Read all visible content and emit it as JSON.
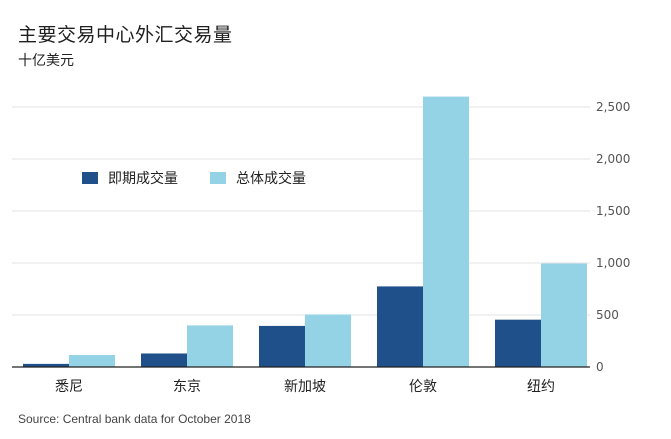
{
  "title": "主要交易中心外汇交易量",
  "subtitle": "十亿美元",
  "source": "Source: Central bank data for October 2018",
  "colors": {
    "spot": "#1f5089",
    "total": "#94d2e5",
    "grid": "#e3e3e3",
    "axis": "#222222",
    "tick_text": "#555555"
  },
  "chart_data": {
    "type": "bar",
    "categories": [
      "悉尼",
      "东京",
      "新加坡",
      "伦敦",
      "纽约"
    ],
    "series": [
      {
        "name": "即期成交量",
        "values": [
          30,
          130,
          395,
          775,
          455
        ],
        "color": "#1f5089"
      },
      {
        "name": "总体成交量",
        "values": [
          115,
          400,
          505,
          2600,
          995
        ],
        "color": "#94d2e5"
      }
    ],
    "ylim": [
      0,
      2500
    ],
    "yticks": [
      0,
      500,
      1000,
      1500,
      2000,
      2500
    ],
    "ytick_labels": [
      "0",
      "500",
      "1,000",
      "1,500",
      "2,000",
      "2,500"
    ],
    "grid": true,
    "y_axis_position": "right",
    "legend_position": "upper-left"
  }
}
